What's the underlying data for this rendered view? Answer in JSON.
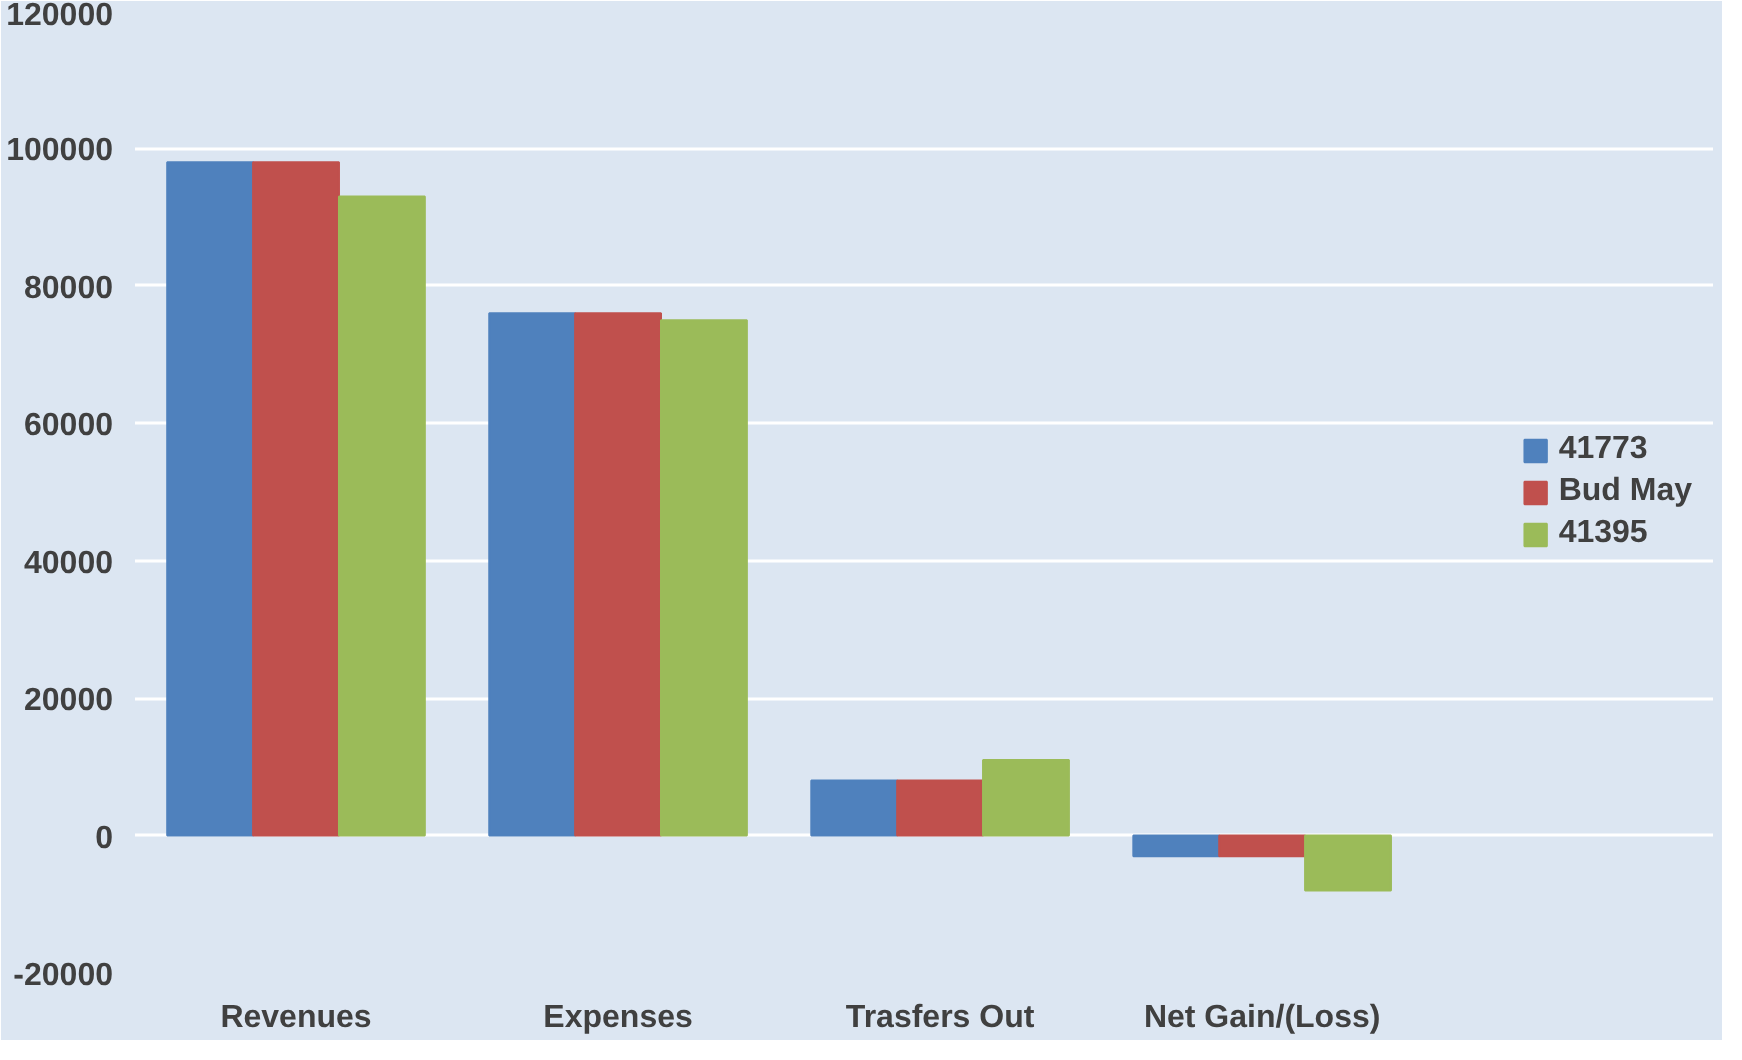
{
  "chart_data": {
    "type": "bar",
    "categories": [
      "Revenues",
      "Expenses",
      "Trasfers Out",
      "Net Gain/(Loss)"
    ],
    "series": [
      {
        "name": "41773",
        "color": "#4f81bd",
        "values": [
          98000,
          76000,
          8000,
          -3000
        ]
      },
      {
        "name": "Bud May",
        "color": "#c0504d",
        "values": [
          98000,
          76000,
          8000,
          -3000
        ]
      },
      {
        "name": "41395",
        "color": "#9bbb59",
        "values": [
          93000,
          75000,
          11000,
          -8000
        ]
      }
    ],
    "ylim": [
      -20000,
      120000
    ],
    "yticks": [
      -20000,
      0,
      20000,
      40000,
      60000,
      80000,
      100000,
      120000
    ],
    "grid": "y",
    "legend": "right"
  }
}
